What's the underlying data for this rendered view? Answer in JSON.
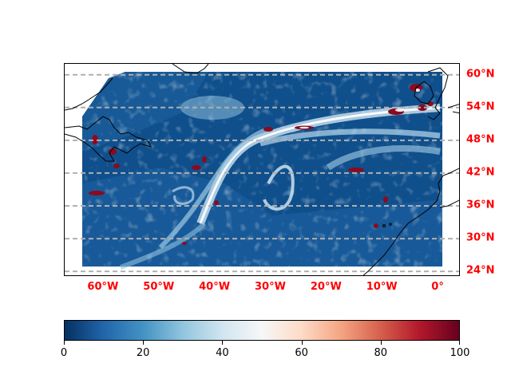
{
  "map": {
    "projection": "PlateCarree",
    "extent": {
      "lon_min": -67,
      "lon_max": 4,
      "lat_min": 23,
      "lat_max": 62
    },
    "data_extent": {
      "lon_min": -64,
      "lon_max": 0,
      "lat_min": 25,
      "lat_max": 60
    },
    "coastline_color": "#000000",
    "gridline_color": "#b0b0b0",
    "gridline_style": "dashed",
    "label_color": "#ff0000"
  },
  "lat_labels": [
    {
      "value": 60,
      "text": "60°N"
    },
    {
      "value": 54,
      "text": "54°N"
    },
    {
      "value": 48,
      "text": "48°N"
    },
    {
      "value": 42,
      "text": "42°N"
    },
    {
      "value": 36,
      "text": "36°N"
    },
    {
      "value": 30,
      "text": "30°N"
    },
    {
      "value": 24,
      "text": "24°N"
    }
  ],
  "lon_labels": [
    {
      "value": -60,
      "text": "60°W"
    },
    {
      "value": -50,
      "text": "50°W"
    },
    {
      "value": -40,
      "text": "40°W"
    },
    {
      "value": -30,
      "text": "30°W"
    },
    {
      "value": -20,
      "text": "20°W"
    },
    {
      "value": -10,
      "text": "10°W"
    },
    {
      "value": 0,
      "text": "0°"
    }
  ],
  "colorbar": {
    "colormap": "RdBu_r",
    "min": 0,
    "max": 100,
    "colors": [
      "#053061",
      "#2166ac",
      "#4393c3",
      "#92c5de",
      "#d1e5f0",
      "#f7f7f7",
      "#fddbc7",
      "#f4a582",
      "#d6604d",
      "#b2182b",
      "#67001f"
    ],
    "ticks": [
      {
        "value": 0,
        "text": "0"
      },
      {
        "value": 20,
        "text": "20"
      },
      {
        "value": 40,
        "text": "40"
      },
      {
        "value": 60,
        "text": "60"
      },
      {
        "value": 80,
        "text": "80"
      },
      {
        "value": 100,
        "text": "100"
      }
    ]
  }
}
